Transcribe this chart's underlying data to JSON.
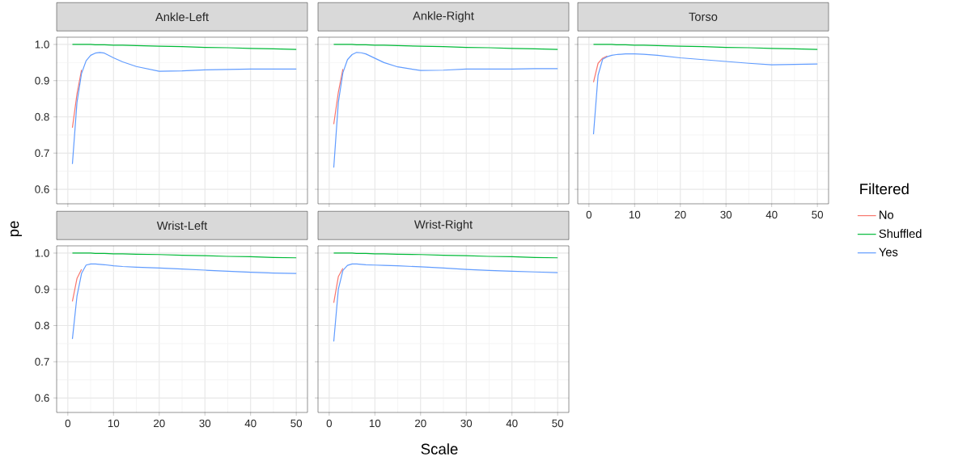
{
  "chart_data": [
    {
      "type": "line",
      "title": "Ankle-Left",
      "x": [
        1,
        2,
        3,
        4,
        5,
        6,
        7,
        8,
        10,
        12,
        15,
        20,
        25,
        30,
        35,
        40,
        45,
        50
      ],
      "xlim": [
        -2.45,
        52.45
      ],
      "ylim": [
        0.56,
        1.02
      ],
      "xticks": [
        0,
        10,
        20,
        30,
        40,
        50
      ],
      "yticks": [
        0.6,
        0.7,
        0.8,
        0.9,
        {
          "value": 1.0,
          "label": "1.0"
        }
      ],
      "grid": true,
      "tick_labels": "y",
      "series": [
        {
          "color": "#f8766d",
          "values": [
            0.77,
            0.863,
            0.93,
            null,
            null,
            null,
            null,
            null,
            null,
            null,
            null,
            null,
            null,
            null,
            null,
            null,
            null,
            null
          ]
        },
        {
          "color": "#00ba38",
          "values": [
            1.0,
            1.0,
            1.0,
            1.0,
            1.0,
            0.999,
            0.999,
            0.999,
            0.998,
            0.998,
            0.997,
            0.995,
            0.994,
            0.992,
            0.991,
            0.989,
            0.988,
            0.986
          ]
        },
        {
          "color": "#619cff",
          "values": [
            0.67,
            0.84,
            0.92,
            0.955,
            0.97,
            0.976,
            0.978,
            0.976,
            0.963,
            0.952,
            0.939,
            0.926,
            0.927,
            0.93,
            0.931,
            0.932,
            0.932,
            0.932
          ]
        }
      ]
    },
    {
      "type": "line",
      "title": "Ankle-Right",
      "x": [
        1,
        2,
        3,
        4,
        5,
        6,
        7,
        8,
        10,
        12,
        15,
        20,
        25,
        30,
        35,
        40,
        45,
        50
      ],
      "xlim": [
        -2.45,
        52.45
      ],
      "ylim": [
        0.56,
        1.02
      ],
      "xticks": [
        0,
        10,
        20,
        30,
        40,
        50
      ],
      "yticks": [
        0.6,
        0.7,
        0.8,
        0.9,
        1.0
      ],
      "grid": true,
      "tick_labels": false,
      "series": [
        {
          "color": "#f8766d",
          "values": [
            0.78,
            0.868,
            0.932,
            null,
            null,
            null,
            null,
            null,
            null,
            null,
            null,
            null,
            null,
            null,
            null,
            null,
            null,
            null
          ]
        },
        {
          "color": "#00ba38",
          "values": [
            1.0,
            1.0,
            1.0,
            1.0,
            1.0,
            0.999,
            0.999,
            0.999,
            0.998,
            0.998,
            0.997,
            0.995,
            0.994,
            0.992,
            0.991,
            0.989,
            0.988,
            0.986
          ]
        },
        {
          "color": "#619cff",
          "values": [
            0.66,
            0.84,
            0.922,
            0.958,
            0.972,
            0.978,
            0.977,
            0.974,
            0.962,
            0.95,
            0.938,
            0.928,
            0.929,
            0.932,
            0.932,
            0.932,
            0.933,
            0.933
          ]
        }
      ]
    },
    {
      "type": "line",
      "title": "Torso",
      "x": [
        1,
        2,
        3,
        4,
        5,
        6,
        7,
        8,
        10,
        12,
        15,
        20,
        25,
        30,
        35,
        40,
        45,
        50
      ],
      "xlim": [
        -2.45,
        52.45
      ],
      "ylim": [
        0.56,
        1.02
      ],
      "xticks": [
        0,
        10,
        20,
        30,
        40,
        50
      ],
      "yticks": [
        0.6,
        0.7,
        0.8,
        0.9,
        1.0
      ],
      "grid": true,
      "tick_labels": "x",
      "legend": "right",
      "legend_title": "Filtered",
      "series": [
        {
          "name": "No",
          "color": "#f8766d",
          "values": [
            0.896,
            0.948,
            0.962,
            0.968,
            null,
            null,
            null,
            null,
            null,
            null,
            null,
            null,
            null,
            null,
            null,
            null,
            null,
            null
          ]
        },
        {
          "name": "Shuffled",
          "color": "#00ba38",
          "values": [
            1.0,
            1.0,
            1.0,
            1.0,
            1.0,
            0.999,
            0.999,
            0.999,
            0.998,
            0.998,
            0.997,
            0.995,
            0.994,
            0.992,
            0.991,
            0.989,
            0.988,
            0.986
          ]
        },
        {
          "name": "Yes",
          "color": "#619cff",
          "values": [
            0.752,
            0.915,
            0.959,
            0.966,
            0.97,
            0.972,
            0.973,
            0.974,
            0.974,
            0.973,
            0.97,
            0.963,
            0.958,
            0.953,
            0.948,
            0.944,
            0.945,
            0.946
          ]
        }
      ]
    },
    {
      "type": "line",
      "title": "Wrist-Left",
      "x": [
        1,
        2,
        3,
        4,
        5,
        6,
        7,
        8,
        10,
        12,
        15,
        20,
        25,
        30,
        35,
        40,
        45,
        50
      ],
      "xlim": [
        -2.45,
        52.45
      ],
      "ylim": [
        0.56,
        1.02
      ],
      "xticks": [
        0,
        10,
        20,
        30,
        40,
        50
      ],
      "yticks": [
        0.6,
        0.7,
        0.8,
        0.9,
        {
          "value": 1.0,
          "label": "1.0"
        }
      ],
      "grid": true,
      "ylabel": "pe",
      "series": [
        {
          "color": "#f8766d",
          "values": [
            0.867,
            0.93,
            0.955,
            null,
            null,
            null,
            null,
            null,
            null,
            null,
            null,
            null,
            null,
            null,
            null,
            null,
            null,
            null
          ]
        },
        {
          "color": "#00ba38",
          "values": [
            1.0,
            1.0,
            1.0,
            1.0,
            1.0,
            0.999,
            0.999,
            0.999,
            0.998,
            0.998,
            0.997,
            0.996,
            0.994,
            0.993,
            0.991,
            0.99,
            0.988,
            0.987
          ]
        },
        {
          "color": "#619cff",
          "values": [
            0.763,
            0.881,
            0.944,
            0.967,
            0.97,
            0.97,
            0.969,
            0.968,
            0.965,
            0.963,
            0.961,
            0.959,
            0.956,
            0.953,
            0.95,
            0.947,
            0.945,
            0.944
          ]
        }
      ]
    },
    {
      "type": "line",
      "title": "Wrist-Right",
      "x": [
        1,
        2,
        3,
        4,
        5,
        6,
        7,
        8,
        10,
        12,
        15,
        20,
        25,
        30,
        35,
        40,
        45,
        50
      ],
      "xlim": [
        -2.45,
        52.45
      ],
      "ylim": [
        0.56,
        1.02
      ],
      "xticks": [
        0,
        10,
        20,
        30,
        40,
        50
      ],
      "yticks": [
        0.6,
        0.7,
        0.8,
        0.9,
        1.0
      ],
      "grid": true,
      "tick_labels": "x",
      "xlabel": "Scale",
      "series": [
        {
          "color": "#f8766d",
          "values": [
            0.863,
            0.935,
            0.958,
            null,
            null,
            null,
            null,
            null,
            null,
            null,
            null,
            null,
            null,
            null,
            null,
            null,
            null,
            null
          ]
        },
        {
          "color": "#00ba38",
          "values": [
            1.0,
            1.0,
            1.0,
            1.0,
            1.0,
            0.999,
            0.999,
            0.999,
            0.998,
            0.998,
            0.997,
            0.996,
            0.994,
            0.993,
            0.991,
            0.99,
            0.988,
            0.987
          ]
        },
        {
          "color": "#619cff",
          "values": [
            0.756,
            0.9,
            0.952,
            0.966,
            0.97,
            0.97,
            0.969,
            0.968,
            0.967,
            0.966,
            0.965,
            0.962,
            0.959,
            0.955,
            0.952,
            0.95,
            0.948,
            0.946
          ]
        }
      ]
    }
  ]
}
